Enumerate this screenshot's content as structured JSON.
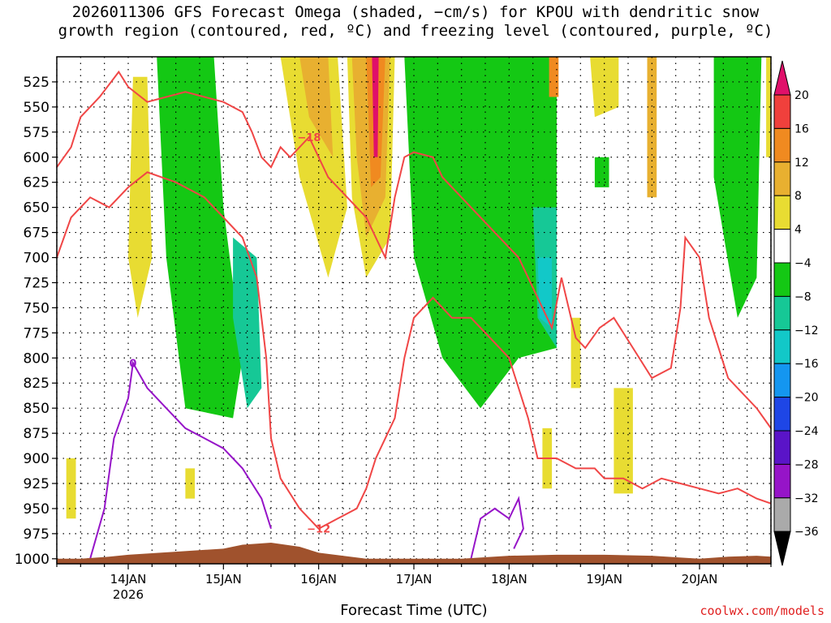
{
  "title_lines": [
    "2026011306 GFS Forecast Omega (shaded, −cm/s) for KPOU with dendritic snow",
    "growth region (contoured, red, ºC) and freezing level (contoured, purple, ºC)"
  ],
  "credit": "coolwx.com/models",
  "chart_data": {
    "type": "heatmap",
    "title": "2026011306 GFS Forecast Omega (shaded, −cm/s) for KPOU with dendritic snow growth region (contoured, red, ºC) and freezing level (contoured, purple, ºC)",
    "xlabel": "Forecast Time (UTC)",
    "ylabel": "",
    "x_range_days": [
      13.25,
      20.75
    ],
    "y_range_hpa": [
      1005,
      500
    ],
    "y_ticks": [
      525,
      550,
      575,
      600,
      625,
      650,
      675,
      700,
      725,
      750,
      775,
      800,
      825,
      850,
      875,
      900,
      925,
      950,
      975,
      1000
    ],
    "x_ticks": [
      {
        "day": 14,
        "label": "14JAN",
        "sublabel": "2026"
      },
      {
        "day": 15,
        "label": "15JAN",
        "sublabel": ""
      },
      {
        "day": 16,
        "label": "16JAN",
        "sublabel": ""
      },
      {
        "day": 17,
        "label": "17JAN",
        "sublabel": ""
      },
      {
        "day": 18,
        "label": "18JAN",
        "sublabel": ""
      },
      {
        "day": 19,
        "label": "19JAN",
        "sublabel": ""
      },
      {
        "day": 20,
        "label": "20JAN",
        "sublabel": ""
      }
    ],
    "grid": true,
    "colorbar": {
      "labels": [
        "20",
        "16",
        "12",
        "8",
        "4",
        "−4",
        "−8",
        "−12",
        "−16",
        "−20",
        "−24",
        "−28",
        "−32",
        "−36"
      ],
      "colors": [
        "#e0106a",
        "#f0403c",
        "#f08a20",
        "#e8b030",
        "#e8dc32",
        "#ffffff",
        "#14c814",
        "#16c896",
        "#12c8c8",
        "#1496f0",
        "#1e46e6",
        "#5a14c8",
        "#9614c8",
        "#aaaaaa",
        "#000000"
      ]
    },
    "shaded_regions": [
      {
        "color": "#e8dc32",
        "polygon": [
          [
            14.05,
            520
          ],
          [
            14.2,
            520
          ],
          [
            14.25,
            700
          ],
          [
            14.1,
            760
          ],
          [
            14.0,
            700
          ]
        ]
      },
      {
        "color": "#14c814",
        "polygon": [
          [
            14.3,
            500
          ],
          [
            14.9,
            500
          ],
          [
            15.0,
            650
          ],
          [
            15.2,
            800
          ],
          [
            15.1,
            860
          ],
          [
            14.6,
            850
          ],
          [
            14.4,
            700
          ]
        ]
      },
      {
        "color": "#16c896",
        "polygon": [
          [
            15.1,
            680
          ],
          [
            15.35,
            700
          ],
          [
            15.4,
            830
          ],
          [
            15.25,
            850
          ],
          [
            15.1,
            760
          ]
        ]
      },
      {
        "color": "#e8dc32",
        "polygon": [
          [
            15.6,
            500
          ],
          [
            16.2,
            500
          ],
          [
            16.3,
            650
          ],
          [
            16.1,
            720
          ],
          [
            15.8,
            620
          ]
        ]
      },
      {
        "color": "#e8b030",
        "polygon": [
          [
            15.8,
            500
          ],
          [
            16.1,
            500
          ],
          [
            16.15,
            600
          ],
          [
            15.9,
            560
          ]
        ]
      },
      {
        "color": "#e8dc32",
        "polygon": [
          [
            16.3,
            500
          ],
          [
            16.8,
            500
          ],
          [
            16.75,
            680
          ],
          [
            16.5,
            720
          ],
          [
            16.35,
            640
          ]
        ]
      },
      {
        "color": "#e8b030",
        "polygon": [
          [
            16.35,
            500
          ],
          [
            16.75,
            500
          ],
          [
            16.7,
            640
          ],
          [
            16.5,
            680
          ],
          [
            16.4,
            600
          ]
        ]
      },
      {
        "color": "#f08a20",
        "polygon": [
          [
            16.5,
            500
          ],
          [
            16.7,
            500
          ],
          [
            16.65,
            620
          ],
          [
            16.55,
            630
          ]
        ]
      },
      {
        "color": "#e0106a",
        "polygon": [
          [
            16.56,
            500
          ],
          [
            16.63,
            500
          ],
          [
            16.62,
            600
          ],
          [
            16.58,
            600
          ]
        ]
      },
      {
        "color": "#14c814",
        "polygon": [
          [
            16.9,
            500
          ],
          [
            18.5,
            500
          ],
          [
            18.5,
            790
          ],
          [
            18.1,
            800
          ],
          [
            17.7,
            850
          ],
          [
            17.3,
            800
          ],
          [
            17.0,
            700
          ]
        ]
      },
      {
        "color": "#16c896",
        "polygon": [
          [
            18.25,
            650
          ],
          [
            18.5,
            650
          ],
          [
            18.5,
            790
          ],
          [
            18.3,
            760
          ]
        ]
      },
      {
        "color": "#12c8c8",
        "polygon": [
          [
            18.3,
            700
          ],
          [
            18.45,
            700
          ],
          [
            18.45,
            770
          ],
          [
            18.32,
            760
          ]
        ]
      },
      {
        "color": "#f08a20",
        "polygon": [
          [
            18.42,
            500
          ],
          [
            18.52,
            500
          ],
          [
            18.52,
            540
          ],
          [
            18.42,
            540
          ]
        ]
      },
      {
        "color": "#e8dc32",
        "polygon": [
          [
            18.85,
            500
          ],
          [
            19.15,
            500
          ],
          [
            19.15,
            550
          ],
          [
            18.9,
            560
          ]
        ]
      },
      {
        "color": "#14c814",
        "polygon": [
          [
            18.9,
            600
          ],
          [
            19.05,
            600
          ],
          [
            19.05,
            630
          ],
          [
            18.9,
            630
          ]
        ]
      },
      {
        "color": "#e8b030",
        "polygon": [
          [
            19.45,
            500
          ],
          [
            19.55,
            500
          ],
          [
            19.55,
            640
          ],
          [
            19.45,
            640
          ]
        ]
      },
      {
        "color": "#e8dc32",
        "polygon": [
          [
            18.65,
            760
          ],
          [
            18.75,
            760
          ],
          [
            18.75,
            830
          ],
          [
            18.65,
            830
          ]
        ]
      },
      {
        "color": "#e8dc32",
        "polygon": [
          [
            19.1,
            830
          ],
          [
            19.3,
            830
          ],
          [
            19.3,
            935
          ],
          [
            19.1,
            935
          ]
        ]
      },
      {
        "color": "#14c814",
        "polygon": [
          [
            20.15,
            500
          ],
          [
            20.65,
            500
          ],
          [
            20.6,
            720
          ],
          [
            20.4,
            760
          ],
          [
            20.15,
            620
          ]
        ]
      },
      {
        "color": "#e8dc32",
        "polygon": [
          [
            20.7,
            500
          ],
          [
            20.75,
            500
          ],
          [
            20.75,
            600
          ],
          [
            20.7,
            600
          ]
        ]
      },
      {
        "color": "#e8dc32",
        "polygon": [
          [
            13.35,
            900
          ],
          [
            13.45,
            900
          ],
          [
            13.45,
            960
          ],
          [
            13.35,
            960
          ]
        ]
      },
      {
        "color": "#e8dc32",
        "polygon": [
          [
            14.6,
            910
          ],
          [
            14.7,
            910
          ],
          [
            14.7,
            940
          ],
          [
            14.6,
            940
          ]
        ]
      },
      {
        "color": "#e8dc32",
        "polygon": [
          [
            18.35,
            870
          ],
          [
            18.45,
            870
          ],
          [
            18.45,
            930
          ],
          [
            18.35,
            930
          ]
        ]
      }
    ],
    "contours": [
      {
        "color": "#f04646",
        "label": "−18",
        "points": [
          [
            13.25,
            610
          ],
          [
            13.4,
            590
          ],
          [
            13.5,
            560
          ],
          [
            13.7,
            540
          ],
          [
            13.9,
            515
          ],
          [
            14.0,
            530
          ],
          [
            14.2,
            545
          ],
          [
            14.4,
            540
          ],
          [
            14.6,
            535
          ],
          [
            14.8,
            540
          ],
          [
            15.0,
            545
          ],
          [
            15.2,
            555
          ],
          [
            15.3,
            575
          ],
          [
            15.4,
            600
          ],
          [
            15.5,
            610
          ],
          [
            15.6,
            590
          ],
          [
            15.7,
            600
          ],
          [
            15.9,
            580
          ],
          [
            16.1,
            620
          ],
          [
            16.3,
            640
          ],
          [
            16.5,
            660
          ],
          [
            16.7,
            700
          ],
          [
            16.8,
            640
          ],
          [
            16.9,
            600
          ],
          [
            17.0,
            595
          ],
          [
            17.2,
            600
          ],
          [
            17.3,
            620
          ],
          [
            17.5,
            640
          ],
          [
            17.7,
            660
          ],
          [
            17.9,
            680
          ],
          [
            18.1,
            700
          ],
          [
            18.3,
            740
          ],
          [
            18.45,
            770
          ],
          [
            18.55,
            720
          ],
          [
            18.7,
            780
          ],
          [
            18.8,
            790
          ],
          [
            18.95,
            770
          ],
          [
            19.1,
            760
          ],
          [
            19.3,
            790
          ],
          [
            19.5,
            820
          ],
          [
            19.7,
            810
          ],
          [
            19.8,
            750
          ],
          [
            19.85,
            680
          ],
          [
            20.0,
            700
          ],
          [
            20.1,
            760
          ],
          [
            20.2,
            790
          ],
          [
            20.3,
            820
          ],
          [
            20.4,
            830
          ],
          [
            20.6,
            850
          ],
          [
            20.75,
            870
          ]
        ]
      },
      {
        "color": "#f04646",
        "label": "−12",
        "points": [
          [
            13.25,
            700
          ],
          [
            13.4,
            660
          ],
          [
            13.6,
            640
          ],
          [
            13.8,
            650
          ],
          [
            14.0,
            630
          ],
          [
            14.2,
            615
          ],
          [
            14.5,
            625
          ],
          [
            14.8,
            640
          ],
          [
            15.0,
            660
          ],
          [
            15.2,
            680
          ],
          [
            15.35,
            720
          ],
          [
            15.45,
            800
          ],
          [
            15.5,
            880
          ],
          [
            15.6,
            920
          ],
          [
            15.8,
            950
          ],
          [
            16.0,
            970
          ],
          [
            16.2,
            960
          ],
          [
            16.4,
            950
          ],
          [
            16.5,
            930
          ],
          [
            16.6,
            900
          ],
          [
            16.7,
            880
          ],
          [
            16.8,
            860
          ],
          [
            16.9,
            800
          ],
          [
            17.0,
            760
          ],
          [
            17.2,
            740
          ],
          [
            17.4,
            760
          ],
          [
            17.6,
            760
          ],
          [
            17.8,
            780
          ],
          [
            18.0,
            800
          ],
          [
            18.2,
            860
          ],
          [
            18.3,
            900
          ],
          [
            18.5,
            900
          ],
          [
            18.7,
            910
          ],
          [
            18.9,
            910
          ],
          [
            19.0,
            920
          ],
          [
            19.2,
            920
          ],
          [
            19.4,
            930
          ],
          [
            19.6,
            920
          ],
          [
            19.8,
            925
          ],
          [
            20.0,
            930
          ],
          [
            20.2,
            935
          ],
          [
            20.4,
            930
          ],
          [
            20.6,
            940
          ],
          [
            20.75,
            945
          ]
        ]
      },
      {
        "color": "#9614c8",
        "label": "0",
        "points": [
          [
            13.6,
            1000
          ],
          [
            13.75,
            950
          ],
          [
            13.85,
            880
          ],
          [
            14.0,
            840
          ],
          [
            14.05,
            805
          ],
          [
            14.2,
            830
          ],
          [
            14.4,
            850
          ],
          [
            14.6,
            870
          ],
          [
            14.8,
            880
          ],
          [
            15.0,
            890
          ],
          [
            15.2,
            910
          ],
          [
            15.4,
            940
          ],
          [
            15.5,
            970
          ]
        ]
      },
      {
        "color": "#9614c8",
        "label": "",
        "points": [
          [
            17.6,
            1000
          ],
          [
            17.7,
            960
          ],
          [
            17.85,
            950
          ],
          [
            18.0,
            960
          ],
          [
            18.1,
            940
          ],
          [
            18.15,
            970
          ],
          [
            18.05,
            990
          ]
        ]
      }
    ],
    "terrain": {
      "color": "#a0522d",
      "points": [
        [
          13.25,
          1000
        ],
        [
          13.5,
          1000
        ],
        [
          13.8,
          998
        ],
        [
          14.0,
          996
        ],
        [
          14.5,
          993
        ],
        [
          15.0,
          990
        ],
        [
          15.2,
          986
        ],
        [
          15.5,
          984
        ],
        [
          15.8,
          988
        ],
        [
          16.0,
          994
        ],
        [
          16.5,
          1000
        ],
        [
          17.0,
          1000
        ],
        [
          17.5,
          1000
        ],
        [
          18.0,
          997
        ],
        [
          18.5,
          996
        ],
        [
          19.0,
          996
        ],
        [
          19.5,
          997
        ],
        [
          20.0,
          1000
        ],
        [
          20.3,
          998
        ],
        [
          20.6,
          997
        ],
        [
          20.75,
          998
        ]
      ]
    }
  }
}
